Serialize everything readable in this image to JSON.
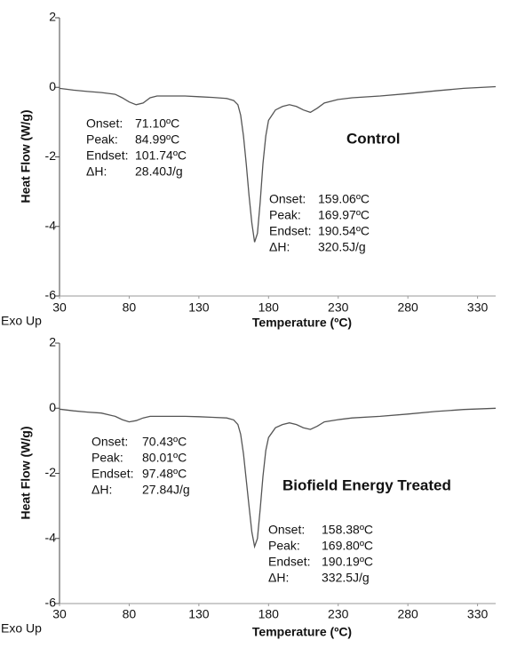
{
  "chart_data": [
    {
      "type": "line",
      "title": "Control",
      "color": "#555555",
      "xlabel": "Temperature (ºC)",
      "ylabel": "Heat Flow (W/g)",
      "note": "Exo Up",
      "xlim": [
        30,
        343
      ],
      "xticks": [
        30,
        80,
        130,
        180,
        230,
        280,
        330
      ],
      "ylim": [
        -6,
        2
      ],
      "yticks": [
        2,
        0,
        -2,
        -4,
        -6
      ],
      "x": [
        30,
        40,
        50,
        60,
        70,
        75,
        80,
        85,
        90,
        95,
        100,
        110,
        120,
        130,
        140,
        150,
        155,
        158,
        160,
        162,
        164,
        166,
        168,
        170,
        172,
        174,
        176,
        178,
        180,
        185,
        190,
        195,
        200,
        205,
        210,
        215,
        220,
        230,
        240,
        260,
        280,
        300,
        320,
        343
      ],
      "values": [
        -0.03,
        -0.08,
        -0.12,
        -0.15,
        -0.2,
        -0.3,
        -0.42,
        -0.5,
        -0.45,
        -0.3,
        -0.25,
        -0.25,
        -0.25,
        -0.27,
        -0.29,
        -0.32,
        -0.38,
        -0.5,
        -0.8,
        -1.4,
        -2.2,
        -3.1,
        -3.9,
        -4.45,
        -4.2,
        -3.3,
        -2.2,
        -1.4,
        -0.95,
        -0.65,
        -0.55,
        -0.5,
        -0.55,
        -0.65,
        -0.72,
        -0.6,
        -0.45,
        -0.35,
        -0.3,
        -0.25,
        -0.18,
        -0.1,
        -0.03,
        0.02
      ],
      "annotations": [
        {
          "lines": [
            {
              "label": "Onset:",
              "value": "71.10ºC"
            },
            {
              "label": "Peak:",
              "value": "84.99ºC"
            },
            {
              "label": "Endset:",
              "value": "101.74ºC"
            },
            {
              "label": "ΔH:",
              "value": "28.40J/g"
            }
          ]
        },
        {
          "lines": [
            {
              "label": "Onset:",
              "value": "159.06ºC"
            },
            {
              "label": "Peak:",
              "value": "169.97ºC"
            },
            {
              "label": "Endset:",
              "value": "190.54ºC"
            },
            {
              "label": "ΔH:",
              "value": "320.5J/g"
            }
          ]
        }
      ]
    },
    {
      "type": "line",
      "title": "Biofield Energy Treated",
      "color": "#555555",
      "xlabel": "Temperature (ºC)",
      "ylabel": "Heat Flow (W/g)",
      "note": "Exo Up",
      "xlim": [
        30,
        343
      ],
      "xticks": [
        30,
        80,
        130,
        180,
        230,
        280,
        330
      ],
      "ylim": [
        -6,
        2
      ],
      "yticks": [
        2,
        0,
        -2,
        -4,
        -6
      ],
      "x": [
        30,
        40,
        50,
        60,
        70,
        75,
        80,
        85,
        90,
        95,
        100,
        110,
        120,
        130,
        140,
        150,
        155,
        158,
        160,
        162,
        164,
        166,
        168,
        170,
        172,
        174,
        176,
        178,
        180,
        185,
        190,
        195,
        200,
        205,
        210,
        215,
        220,
        230,
        240,
        260,
        280,
        300,
        320,
        343
      ],
      "values": [
        -0.03,
        -0.08,
        -0.12,
        -0.15,
        -0.25,
        -0.35,
        -0.42,
        -0.38,
        -0.3,
        -0.25,
        -0.25,
        -0.25,
        -0.25,
        -0.26,
        -0.28,
        -0.3,
        -0.36,
        -0.5,
        -0.8,
        -1.4,
        -2.2,
        -3.0,
        -3.8,
        -4.25,
        -4.0,
        -3.1,
        -2.1,
        -1.3,
        -0.9,
        -0.6,
        -0.5,
        -0.45,
        -0.5,
        -0.6,
        -0.65,
        -0.55,
        -0.42,
        -0.35,
        -0.3,
        -0.25,
        -0.18,
        -0.1,
        -0.04,
        0.0
      ],
      "annotations": [
        {
          "lines": [
            {
              "label": "Onset:",
              "value": "70.43ºC"
            },
            {
              "label": "Peak:",
              "value": "80.01ºC"
            },
            {
              "label": "Endset:",
              "value": "97.48ºC"
            },
            {
              "label": "ΔH:",
              "value": "27.84J/g"
            }
          ]
        },
        {
          "lines": [
            {
              "label": "Onset:",
              "value": "158.38ºC"
            },
            {
              "label": "Peak:",
              "value": "169.80ºC"
            },
            {
              "label": "Endset:",
              "value": "190.19ºC"
            },
            {
              "label": "ΔH:",
              "value": "332.5J/g"
            }
          ]
        }
      ]
    }
  ]
}
